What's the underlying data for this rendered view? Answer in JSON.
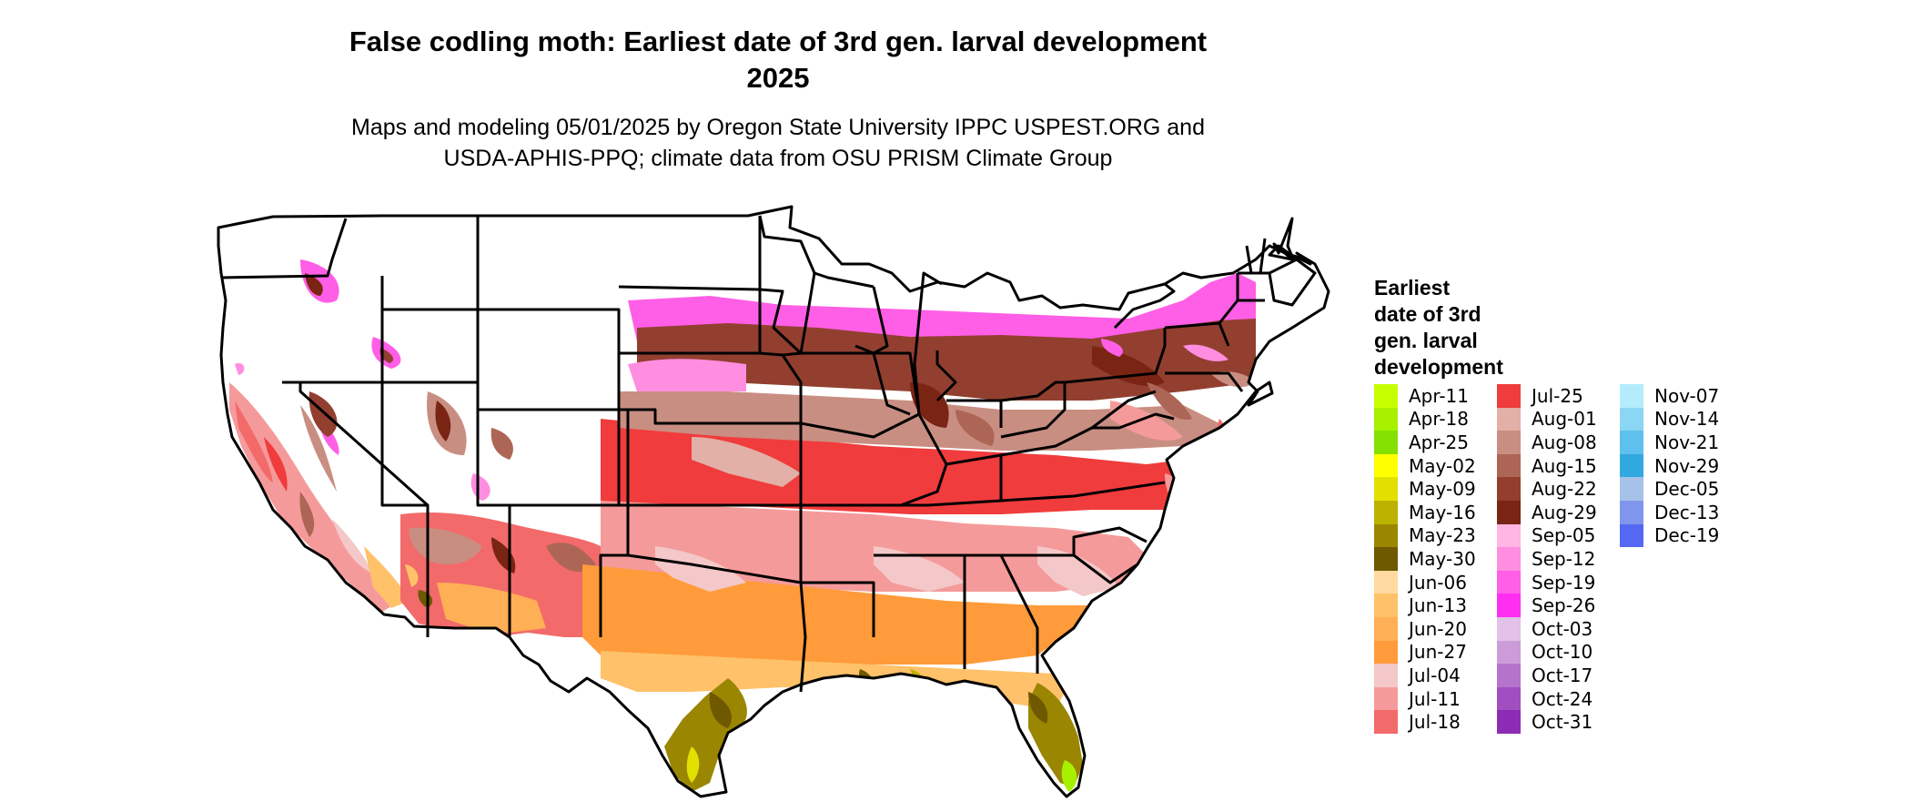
{
  "title": {
    "line1": "False codling moth: Earliest date of 3rd gen. larval development",
    "line2": "2025"
  },
  "subtitle": {
    "line1": "Maps and modeling 05/01/2025 by Oregon State University IPPC USPEST.ORG and",
    "line2": "USDA-APHIS-PPQ; climate data from OSU PRISM Climate Group"
  },
  "legend": {
    "title_lines": [
      "Earliest",
      "date of 3rd",
      "gen. larval",
      "development"
    ],
    "items": [
      {
        "label": "Apr-11",
        "color": "#c8ff00"
      },
      {
        "label": "Apr-18",
        "color": "#a6f000"
      },
      {
        "label": "Apr-25",
        "color": "#84e000"
      },
      {
        "label": "May-02",
        "color": "#ffff00"
      },
      {
        "label": "May-09",
        "color": "#e2e000"
      },
      {
        "label": "May-16",
        "color": "#bbb300"
      },
      {
        "label": "May-23",
        "color": "#9a8600"
      },
      {
        "label": "May-30",
        "color": "#6e5800"
      },
      {
        "label": "Jun-06",
        "color": "#ffd9a0"
      },
      {
        "label": "Jun-13",
        "color": "#ffc16a"
      },
      {
        "label": "Jun-20",
        "color": "#ffaf55"
      },
      {
        "label": "Jun-27",
        "color": "#ff9b3a"
      },
      {
        "label": "Jul-04",
        "color": "#f4c8c8"
      },
      {
        "label": "Jul-11",
        "color": "#f59a9a"
      },
      {
        "label": "Jul-18",
        "color": "#f26a6a"
      },
      {
        "label": "Jul-25",
        "color": "#f03c3c"
      },
      {
        "label": "Aug-01",
        "color": "#e2b0a6"
      },
      {
        "label": "Aug-08",
        "color": "#c98e82"
      },
      {
        "label": "Aug-15",
        "color": "#ad6656"
      },
      {
        "label": "Aug-22",
        "color": "#923f30"
      },
      {
        "label": "Aug-29",
        "color": "#7a2414"
      },
      {
        "label": "Sep-05",
        "color": "#ffb6e2"
      },
      {
        "label": "Sep-12",
        "color": "#ff8ee0"
      },
      {
        "label": "Sep-19",
        "color": "#ff5ee6"
      },
      {
        "label": "Sep-26",
        "color": "#ff2ef0"
      },
      {
        "label": "Oct-03",
        "color": "#e2c2e6"
      },
      {
        "label": "Oct-10",
        "color": "#cc9cd8"
      },
      {
        "label": "Oct-17",
        "color": "#b574cc"
      },
      {
        "label": "Oct-24",
        "color": "#a04ec0"
      },
      {
        "label": "Oct-31",
        "color": "#8c2cb4"
      },
      {
        "label": "Nov-07",
        "color": "#b4ecfc"
      },
      {
        "label": "Nov-14",
        "color": "#8ad6f4"
      },
      {
        "label": "Nov-21",
        "color": "#5ec0ec"
      },
      {
        "label": "Nov-29",
        "color": "#32a8e0"
      },
      {
        "label": "Dec-05",
        "color": "#a6c2e8"
      },
      {
        "label": "Dec-13",
        "color": "#7f96ec"
      },
      {
        "label": "Dec-19",
        "color": "#5468f4"
      }
    ]
  }
}
